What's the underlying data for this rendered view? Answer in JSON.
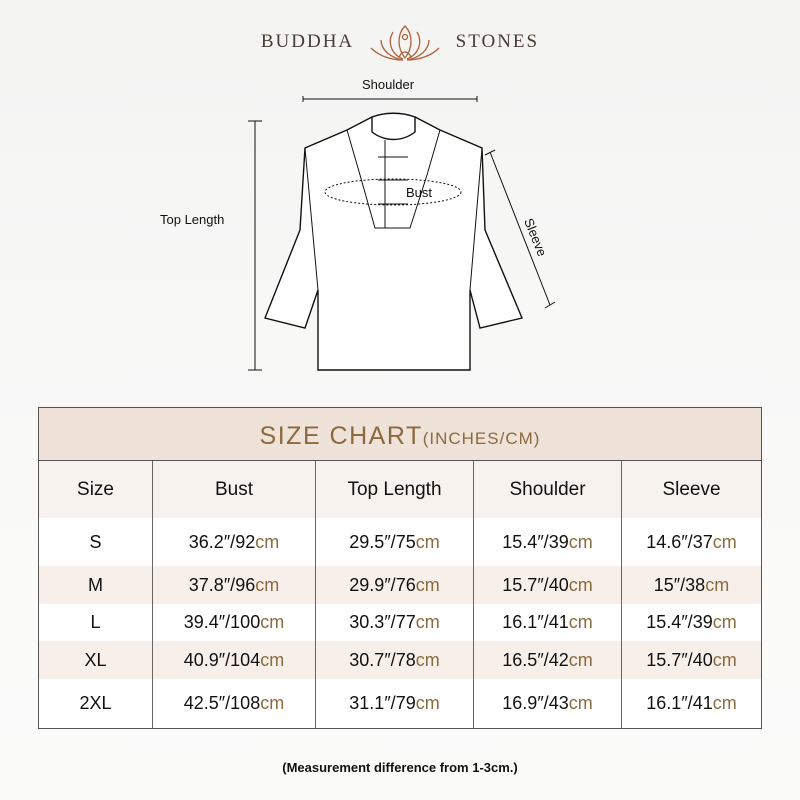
{
  "brand": {
    "left": "BUDDHA",
    "right": "STONES",
    "logo_icon": "lotus-meditation-icon",
    "color": "#b0613a"
  },
  "diagram": {
    "shoulder": "Shoulder",
    "bust": "Bust",
    "sleeve": "Sleeve",
    "top_length": "Top Length"
  },
  "table": {
    "title": "SIZE CHART",
    "title_suffix": "(INCHES/CM)",
    "headers": [
      "Size",
      "Bust",
      "Top Length",
      "Shoulder",
      "Sleeve"
    ],
    "rows": [
      {
        "size": "S",
        "cells": [
          {
            "v": "36.2″/92",
            "u": "cm"
          },
          {
            "v": "29.5″/75",
            "u": "cm"
          },
          {
            "v": "15.4″/39",
            "u": "cm"
          },
          {
            "v": "14.6″/37",
            "u": "cm"
          }
        ]
      },
      {
        "size": "M",
        "cells": [
          {
            "v": "37.8″/96",
            "u": "cm"
          },
          {
            "v": "29.9″/76",
            "u": "cm"
          },
          {
            "v": "15.7″/40",
            "u": "cm"
          },
          {
            "v": "15″/38",
            "u": "cm"
          }
        ]
      },
      {
        "size": "L",
        "cells": [
          {
            "v": "39.4″/100",
            "u": "cm"
          },
          {
            "v": "30.3″/77",
            "u": "cm"
          },
          {
            "v": "16.1″/41",
            "u": "cm"
          },
          {
            "v": "15.4″/39",
            "u": "cm"
          }
        ]
      },
      {
        "size": "XL",
        "cells": [
          {
            "v": "40.9″/104",
            "u": "cm"
          },
          {
            "v": "30.7″/78",
            "u": "cm"
          },
          {
            "v": "16.5″/42",
            "u": "cm"
          },
          {
            "v": "15.7″/40",
            "u": "cm"
          }
        ]
      },
      {
        "size": "2XL",
        "cells": [
          {
            "v": "42.5″/108",
            "u": "cm"
          },
          {
            "v": "31.1″/79",
            "u": "cm"
          },
          {
            "v": "16.9″/43",
            "u": "cm"
          },
          {
            "v": "16.1″/41",
            "u": "cm"
          }
        ]
      }
    ],
    "accent": "#8c6a3c",
    "header_bg": "#eee2d9"
  },
  "note": "(Measurement difference from 1-3cm.)"
}
